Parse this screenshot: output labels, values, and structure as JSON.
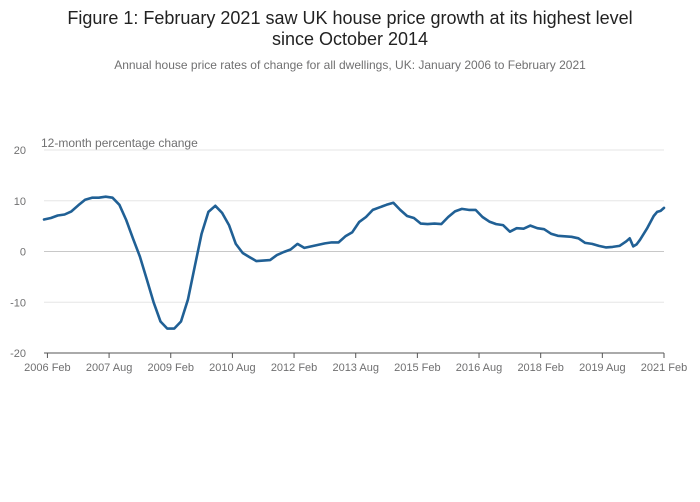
{
  "chart_data": {
    "type": "line",
    "title_line1": "Figure 1: February 2021 saw UK house price growth at its highest level",
    "title_line2": "since October 2014",
    "subtitle": "Annual house price rates of change for all dwellings, UK: January 2006 to February 2021",
    "ylabel": "12-month percentage change",
    "xlabel": "",
    "ylim": [
      -20,
      20
    ],
    "y_ticks": [
      20,
      10,
      0,
      -10,
      -20
    ],
    "x_range": [
      "2006-01",
      "2021-02"
    ],
    "x_ticks": [
      {
        "date": "2006-02",
        "label": "2006 Feb"
      },
      {
        "date": "2007-08",
        "label": "2007 Aug"
      },
      {
        "date": "2009-02",
        "label": "2009 Feb"
      },
      {
        "date": "2010-08",
        "label": "2010 Aug"
      },
      {
        "date": "2012-02",
        "label": "2012 Feb"
      },
      {
        "date": "2013-08",
        "label": "2013 Aug"
      },
      {
        "date": "2015-02",
        "label": "2015 Feb"
      },
      {
        "date": "2016-08",
        "label": "2016 Aug"
      },
      {
        "date": "2018-02",
        "label": "2018 Feb"
      },
      {
        "date": "2019-08",
        "label": "2019 Aug"
      },
      {
        "date": "2021-02",
        "label": "2021 Feb"
      }
    ],
    "grid": true,
    "legend": "none",
    "line_color": "#206095",
    "series": [
      {
        "values": [
          {
            "x": "2006-01",
            "y": 6.3
          },
          {
            "x": "2006-03",
            "y": 6.6
          },
          {
            "x": "2006-05",
            "y": 7.1
          },
          {
            "x": "2006-07",
            "y": 7.3
          },
          {
            "x": "2006-09",
            "y": 7.9
          },
          {
            "x": "2006-11",
            "y": 9.1
          },
          {
            "x": "2007-01",
            "y": 10.2
          },
          {
            "x": "2007-03",
            "y": 10.6
          },
          {
            "x": "2007-05",
            "y": 10.6
          },
          {
            "x": "2007-07",
            "y": 10.8
          },
          {
            "x": "2007-09",
            "y": 10.6
          },
          {
            "x": "2007-11",
            "y": 9.2
          },
          {
            "x": "2008-01",
            "y": 6.2
          },
          {
            "x": "2008-03",
            "y": 2.5
          },
          {
            "x": "2008-05",
            "y": -1.0
          },
          {
            "x": "2008-07",
            "y": -5.5
          },
          {
            "x": "2008-09",
            "y": -10.0
          },
          {
            "x": "2008-11",
            "y": -13.8
          },
          {
            "x": "2009-01",
            "y": -15.2
          },
          {
            "x": "2009-03",
            "y": -15.2
          },
          {
            "x": "2009-05",
            "y": -13.8
          },
          {
            "x": "2009-07",
            "y": -9.5
          },
          {
            "x": "2009-09",
            "y": -3.0
          },
          {
            "x": "2009-11",
            "y": 3.5
          },
          {
            "x": "2010-01",
            "y": 7.8
          },
          {
            "x": "2010-03",
            "y": 9.0
          },
          {
            "x": "2010-05",
            "y": 7.6
          },
          {
            "x": "2010-07",
            "y": 5.2
          },
          {
            "x": "2010-09",
            "y": 1.5
          },
          {
            "x": "2010-11",
            "y": -0.3
          },
          {
            "x": "2011-01",
            "y": -1.1
          },
          {
            "x": "2011-03",
            "y": -1.9
          },
          {
            "x": "2011-05",
            "y": -1.8
          },
          {
            "x": "2011-07",
            "y": -1.7
          },
          {
            "x": "2011-09",
            "y": -0.7
          },
          {
            "x": "2011-11",
            "y": -0.1
          },
          {
            "x": "2012-01",
            "y": 0.4
          },
          {
            "x": "2012-03",
            "y": 1.5
          },
          {
            "x": "2012-05",
            "y": 0.7
          },
          {
            "x": "2012-07",
            "y": 1.0
          },
          {
            "x": "2012-09",
            "y": 1.3
          },
          {
            "x": "2012-11",
            "y": 1.6
          },
          {
            "x": "2013-01",
            "y": 1.8
          },
          {
            "x": "2013-03",
            "y": 1.8
          },
          {
            "x": "2013-05",
            "y": 3.0
          },
          {
            "x": "2013-07",
            "y": 3.8
          },
          {
            "x": "2013-09",
            "y": 5.8
          },
          {
            "x": "2013-11",
            "y": 6.8
          },
          {
            "x": "2014-01",
            "y": 8.2
          },
          {
            "x": "2014-03",
            "y": 8.7
          },
          {
            "x": "2014-05",
            "y": 9.2
          },
          {
            "x": "2014-07",
            "y": 9.6
          },
          {
            "x": "2014-09",
            "y": 8.2
          },
          {
            "x": "2014-11",
            "y": 7.0
          },
          {
            "x": "2015-01",
            "y": 6.6
          },
          {
            "x": "2015-03",
            "y": 5.5
          },
          {
            "x": "2015-05",
            "y": 5.4
          },
          {
            "x": "2015-07",
            "y": 5.5
          },
          {
            "x": "2015-09",
            "y": 5.4
          },
          {
            "x": "2015-11",
            "y": 6.8
          },
          {
            "x": "2016-01",
            "y": 7.9
          },
          {
            "x": "2016-03",
            "y": 8.4
          },
          {
            "x": "2016-05",
            "y": 8.2
          },
          {
            "x": "2016-07",
            "y": 8.2
          },
          {
            "x": "2016-09",
            "y": 6.8
          },
          {
            "x": "2016-11",
            "y": 5.9
          },
          {
            "x": "2017-01",
            "y": 5.4
          },
          {
            "x": "2017-03",
            "y": 5.2
          },
          {
            "x": "2017-05",
            "y": 3.9
          },
          {
            "x": "2017-07",
            "y": 4.6
          },
          {
            "x": "2017-09",
            "y": 4.5
          },
          {
            "x": "2017-11",
            "y": 5.1
          },
          {
            "x": "2018-01",
            "y": 4.6
          },
          {
            "x": "2018-03",
            "y": 4.4
          },
          {
            "x": "2018-05",
            "y": 3.5
          },
          {
            "x": "2018-07",
            "y": 3.1
          },
          {
            "x": "2018-09",
            "y": 3.0
          },
          {
            "x": "2018-11",
            "y": 2.9
          },
          {
            "x": "2019-01",
            "y": 2.6
          },
          {
            "x": "2019-03",
            "y": 1.7
          },
          {
            "x": "2019-05",
            "y": 1.5
          },
          {
            "x": "2019-07",
            "y": 1.1
          },
          {
            "x": "2019-09",
            "y": 0.8
          },
          {
            "x": "2019-11",
            "y": 0.9
          },
          {
            "x": "2020-01",
            "y": 1.1
          },
          {
            "x": "2020-03",
            "y": 2.0
          },
          {
            "x": "2020-04",
            "y": 2.6
          },
          {
            "x": "2020-05",
            "y": 1.0
          },
          {
            "x": "2020-06",
            "y": 1.4
          },
          {
            "x": "2020-07",
            "y": 2.3
          },
          {
            "x": "2020-09",
            "y": 4.5
          },
          {
            "x": "2020-11",
            "y": 7.0
          },
          {
            "x": "2020-12",
            "y": 7.8
          },
          {
            "x": "2021-01",
            "y": 8.0
          },
          {
            "x": "2021-02",
            "y": 8.6
          }
        ]
      }
    ]
  }
}
